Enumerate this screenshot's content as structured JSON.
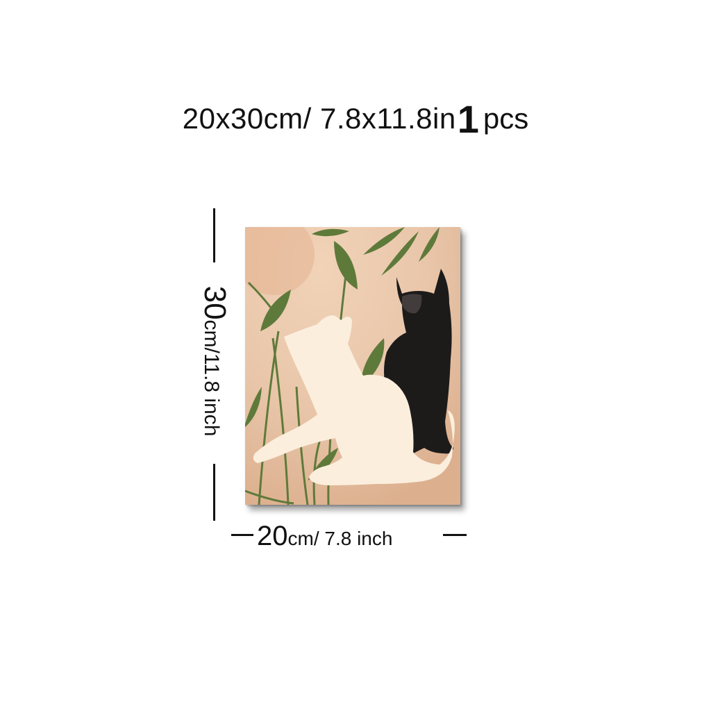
{
  "title": {
    "size_text": "20x30cm/ 7.8x11.8in",
    "quantity": "1",
    "quantity_unit": "pcs"
  },
  "height_label": {
    "value": "30",
    "unit_text": "cm/11.8 inch"
  },
  "width_label": {
    "value": "20",
    "unit_text": "cm/ 7.8 inch"
  },
  "colors": {
    "background": "#ffffff",
    "text": "#111111",
    "canvas": "#e8c7ac",
    "leaf": "#5e7a3a",
    "black_cat": "#1d1b1a",
    "white_cat": "#fbeedd"
  }
}
